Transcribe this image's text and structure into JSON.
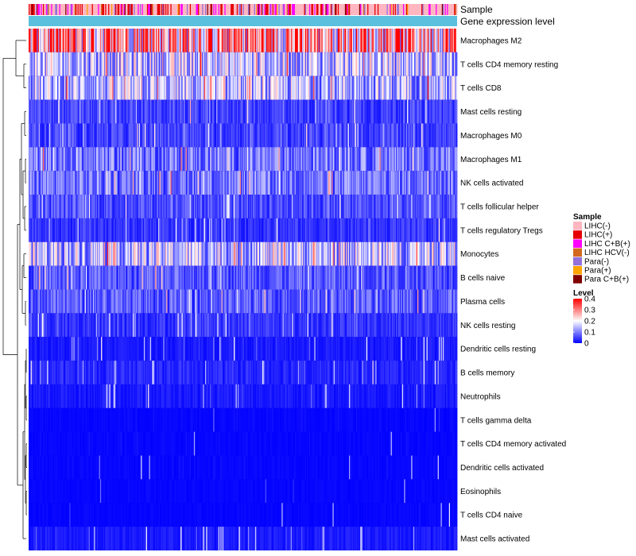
{
  "chart_data": {
    "type": "heatmap",
    "title": "",
    "annotation_rows": [
      {
        "label": "Sample"
      },
      {
        "label": "Gene expression level",
        "color": "#5bc0de"
      }
    ],
    "rows": [
      "Macrophages M2",
      "T cells CD4 memory resting",
      "T cells CD8",
      "Mast cells resting",
      "Macrophages M0",
      "Macrophages M1",
      "NK cells activated",
      "T cells follicular helper",
      "T cells regulatory  Tregs",
      "Monocytes",
      "B cells naive",
      "Plasma cells",
      "NK cells resting",
      "Dendritic cells resting",
      "B cells memory",
      "Neutrophils",
      "T cells gamma delta",
      "T cells CD4 memory activated",
      "Dendritic cells activated",
      "Eosinophils",
      "T cells CD4 naive",
      "Mast cells activated"
    ],
    "row_mean_level": [
      0.28,
      0.15,
      0.14,
      0.05,
      0.05,
      0.09,
      0.09,
      0.06,
      0.04,
      0.15,
      0.07,
      0.07,
      0.04,
      0.02,
      0.03,
      0.02,
      0.01,
      0.01,
      0.01,
      0.005,
      0.004,
      0.02
    ],
    "n_samples": 420,
    "sample_legend": {
      "title": "Sample",
      "items": [
        {
          "label": "LIHC(-)",
          "color": "#ffb6c1"
        },
        {
          "label": "LIHC(+)",
          "color": "#e60000"
        },
        {
          "label": "LIHC C+B(+)",
          "color": "#ff00ff"
        },
        {
          "label": "LIHC HCV(-)",
          "color": "#d2691e"
        },
        {
          "label": "Para(-)",
          "color": "#9370db"
        },
        {
          "label": "Para(+)",
          "color": "#ffa500"
        },
        {
          "label": "Para C+B(+)",
          "color": "#800000"
        }
      ]
    },
    "level_legend": {
      "title": "Level",
      "min": 0,
      "max": 0.4,
      "ticks": [
        "0.4",
        "0.3",
        "0.2",
        "0.1",
        "0"
      ],
      "colors": {
        "low": "#0000ff",
        "mid": "#ffffff",
        "high": "#ff0000"
      }
    }
  }
}
